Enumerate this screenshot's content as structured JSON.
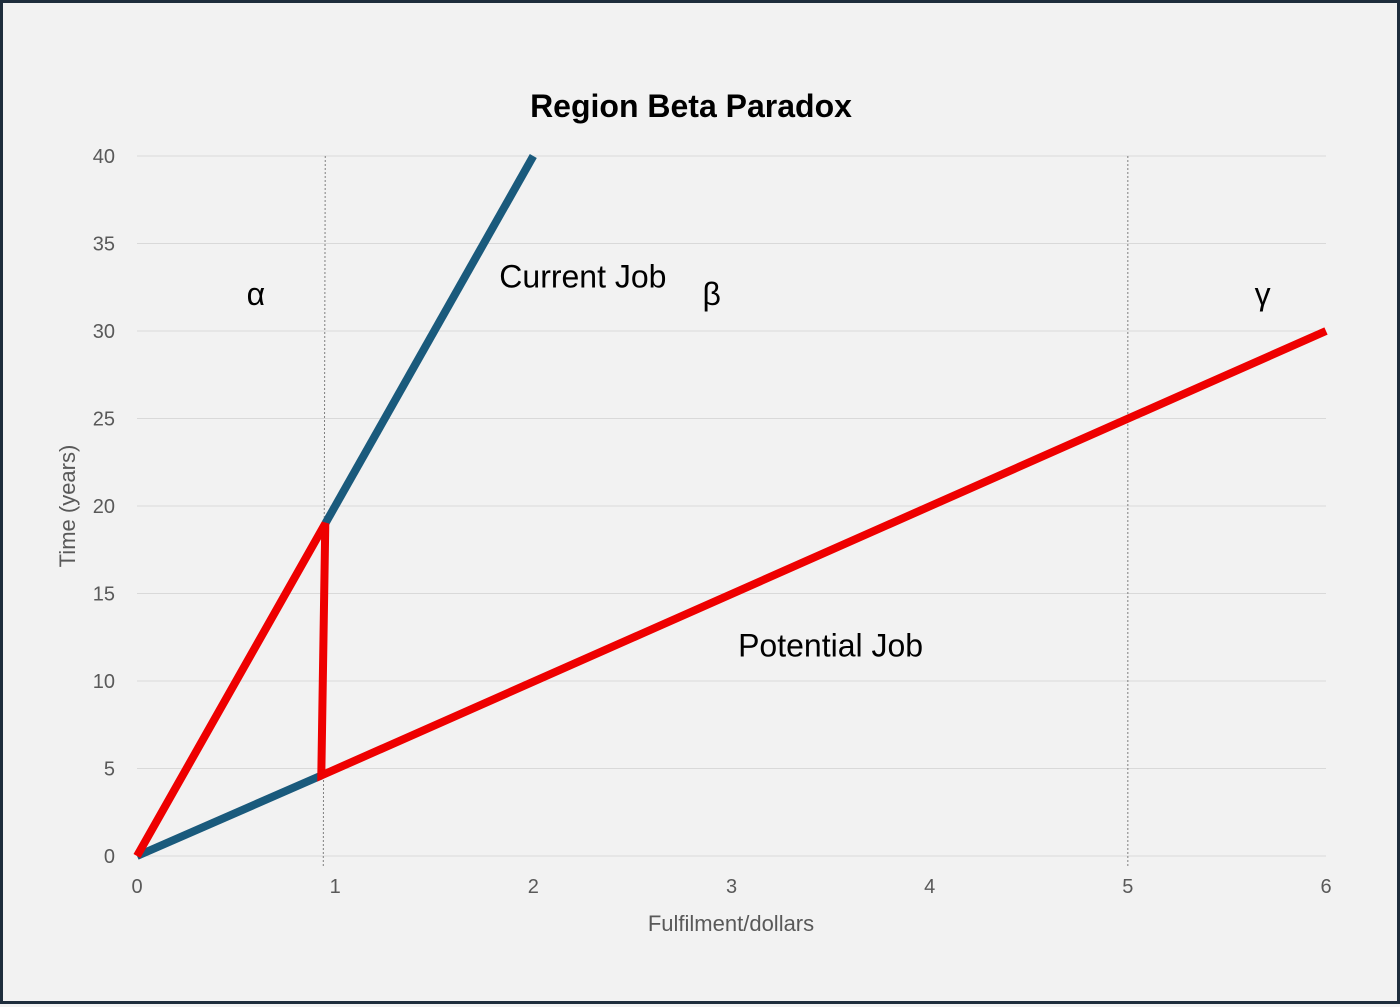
{
  "chart_data": {
    "type": "line",
    "title": "Region Beta Paradox",
    "xlabel": "Fulfilment/dollars",
    "ylabel": "Time (years)",
    "xlim": [
      0,
      6
    ],
    "ylim": [
      0,
      40
    ],
    "x_ticks": [
      "0",
      "1",
      "2",
      "3",
      "4",
      "5",
      "6"
    ],
    "y_ticks": [
      "0",
      "5",
      "10",
      "15",
      "20",
      "25",
      "30",
      "35",
      "40"
    ],
    "grid": "horizontal",
    "series": [
      {
        "color": "#1a5a7c",
        "points": [
          [
            0,
            0
          ],
          [
            0.93,
            4.6
          ]
        ]
      },
      {
        "color": "#1a5a7c",
        "points": [
          [
            0.95,
            19
          ],
          [
            2,
            40
          ]
        ]
      },
      {
        "color": "#ee0000",
        "points": [
          [
            0,
            0
          ],
          [
            0.95,
            19
          ],
          [
            0.93,
            4.6
          ],
          [
            6,
            30
          ]
        ]
      }
    ],
    "reference_x": [
      0.94,
      0.95,
      5,
      5
    ],
    "annotations": [
      {
        "text": "Current Job",
        "x": 2.25,
        "y": 32.5
      },
      {
        "text": "Potential Job",
        "x": 3.5,
        "y": 11.4
      },
      {
        "text": "α",
        "x": 0.6,
        "y": 31.5
      },
      {
        "text": "β",
        "x": 2.9,
        "y": 31.5
      },
      {
        "text": "γ",
        "x": 5.68,
        "y": 31.5
      }
    ]
  }
}
